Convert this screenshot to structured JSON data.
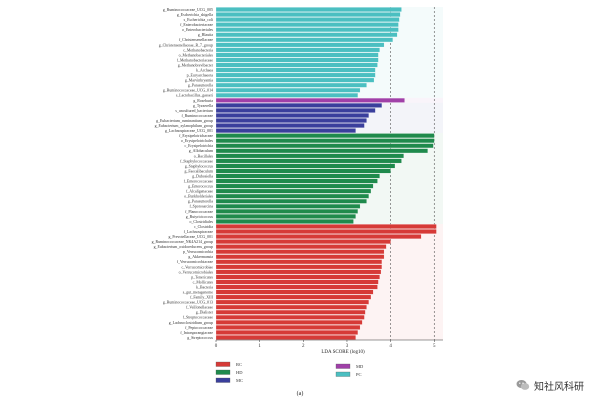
{
  "chart_data": {
    "type": "bar",
    "orientation": "horizontal",
    "xlabel": "LDA SCORE (log10)",
    "xlim": [
      0,
      5.2
    ],
    "xticks": [
      0,
      1,
      2,
      3,
      4,
      5
    ],
    "grid_lines_at": [
      4,
      5
    ],
    "legend_position": "bottom",
    "caption": "(a)",
    "series": [
      {
        "name": "PC",
        "color": "#4bbfc1",
        "values": [
          {
            "label": "g_Ruminococcaceae_UCG_005",
            "value": 4.25
          },
          {
            "label": "g_Escherichia_shigella",
            "value": 4.22
          },
          {
            "label": "s_Escherichia_coli",
            "value": 4.2
          },
          {
            "label": "f_Enterobacteriaceae",
            "value": 4.18
          },
          {
            "label": "o_Enterobacteriales",
            "value": 4.18
          },
          {
            "label": "g_Blautia",
            "value": 4.15
          },
          {
            "label": "f_Christensenellaceae",
            "value": 4.05
          },
          {
            "label": "g_Christensenellaceae_R_7_group",
            "value": 3.85
          },
          {
            "label": "c_Methanobacteria",
            "value": 3.75
          },
          {
            "label": "o_Methanobacteriales",
            "value": 3.72
          },
          {
            "label": "f_Methanobacteriaceae",
            "value": 3.72
          },
          {
            "label": "g_Methanobrevibacter",
            "value": 3.7
          },
          {
            "label": "k_Archaea",
            "value": 3.65
          },
          {
            "label": "p_Euryarchaeota",
            "value": 3.65
          },
          {
            "label": "g_Marvinbryantia",
            "value": 3.62
          },
          {
            "label": "g_Parasutterella",
            "value": 3.45
          },
          {
            "label": "g_Ruminococcaceae_UCG_014",
            "value": 3.3
          },
          {
            "label": "s_Lactobacillus_gasseri",
            "value": 3.25
          }
        ]
      },
      {
        "name": "MD",
        "color": "#a040a8",
        "values": [
          {
            "label": "g_Roseburia",
            "value": 4.32
          }
        ]
      },
      {
        "name": "MC",
        "color": "#3a3f9c",
        "values": [
          {
            "label": "g_Tyzzerella",
            "value": 3.8
          },
          {
            "label": "s_uncultured_bacterium",
            "value": 3.65
          },
          {
            "label": "f_Ruminococcaceae",
            "value": 3.5
          },
          {
            "label": "g_Eubacterium_ruminantium_group",
            "value": 3.45
          },
          {
            "label": "g_Eubacterium_xylanophilum_group",
            "value": 3.4
          },
          {
            "label": "g_Lachnospiraceae_UCG_001",
            "value": 3.2
          }
        ]
      },
      {
        "name": "HD",
        "color": "#1f8a4c",
        "values": [
          {
            "label": "f_Erysipelotrichaceae",
            "value": 5.0
          },
          {
            "label": "o_Erysipelotrichales",
            "value": 5.0
          },
          {
            "label": "c_Erysipelotrichia",
            "value": 4.98
          },
          {
            "label": "g_Allobaculum",
            "value": 4.85
          },
          {
            "label": "o_Bacillales",
            "value": 4.3
          },
          {
            "label": "f_Staphylococcaceae",
            "value": 4.25
          },
          {
            "label": "g_Staphylococcus",
            "value": 4.1
          },
          {
            "label": "g_Faecalibaculum",
            "value": 4.0
          },
          {
            "label": "g_Dubosiella",
            "value": 3.75
          },
          {
            "label": "f_Enterococcaceae",
            "value": 3.7
          },
          {
            "label": "g_Enterococcus",
            "value": 3.6
          },
          {
            "label": "f_Alcaligenaceae",
            "value": 3.55
          },
          {
            "label": "o_Burkholderiales",
            "value": 3.5
          },
          {
            "label": "g_Parasutterella",
            "value": 3.45
          },
          {
            "label": "f_Sporosarcina",
            "value": 3.3
          },
          {
            "label": "f_Planococcaceae",
            "value": 3.25
          },
          {
            "label": "g_Butyricicoccus",
            "value": 3.2
          },
          {
            "label": "o_Clostridiales",
            "value": 3.15
          }
        ]
      },
      {
        "name": "RC",
        "color": "#d63a37",
        "values": [
          {
            "label": "c_Clostridia",
            "value": 5.05
          },
          {
            "label": "f_Lachnospiraceae",
            "value": 5.05
          },
          {
            "label": "g_Prevotellaceae_UCG_001",
            "value": 4.7
          },
          {
            "label": "g_Ruminococcaceae_NK4A214_group",
            "value": 4.0
          },
          {
            "label": "g_Eubacterium_oxidoreducens_group",
            "value": 3.9
          },
          {
            "label": "p_Verrucomicrobia",
            "value": 3.85
          },
          {
            "label": "g_Akkermansia",
            "value": 3.85
          },
          {
            "label": "f_Verrucomicrobiaceae",
            "value": 3.8
          },
          {
            "label": "c_Verrucomicrobiae",
            "value": 3.8
          },
          {
            "label": "o_Verrucomicrobiales",
            "value": 3.78
          },
          {
            "label": "p_Tenericutes",
            "value": 3.75
          },
          {
            "label": "c_Mollicutes",
            "value": 3.72
          },
          {
            "label": "k_Bacteria",
            "value": 3.7
          },
          {
            "label": "s_gut_metagenome",
            "value": 3.6
          },
          {
            "label": "f_Family_XIII",
            "value": 3.55
          },
          {
            "label": "g_Ruminococcaceae_UCG_013",
            "value": 3.5
          },
          {
            "label": "f_Veillonellaceae",
            "value": 3.45
          },
          {
            "label": "g_Dialister",
            "value": 3.42
          },
          {
            "label": "f_Streptococcaceae",
            "value": 3.4
          },
          {
            "label": "g_Lachnoclostridium_group",
            "value": 3.35
          },
          {
            "label": "f_Peptococcaceae",
            "value": 3.3
          },
          {
            "label": "f_Intrasporangiaceae",
            "value": 3.25
          },
          {
            "label": "g_Streptococcus",
            "value": 3.2
          }
        ]
      }
    ],
    "legend": [
      {
        "name": "RC",
        "color": "#d63a37"
      },
      {
        "name": "HD",
        "color": "#1f8a4c"
      },
      {
        "name": "MC",
        "color": "#3a3f9c"
      },
      {
        "name": "MD",
        "color": "#a040a8"
      },
      {
        "name": "PC",
        "color": "#4bbfc1"
      }
    ]
  },
  "watermark": {
    "text": "知社风科研",
    "icon": "wechat-icon"
  }
}
